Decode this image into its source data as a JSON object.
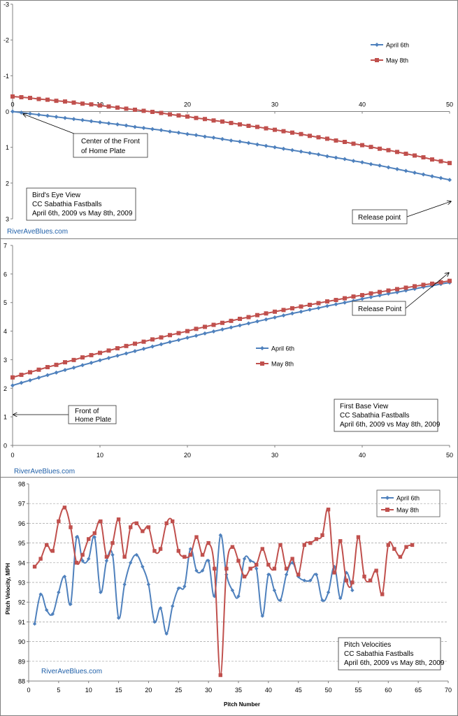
{
  "colors": {
    "april": "#4F81BD",
    "may": "#C0504D",
    "axis": "#808080",
    "grid": "#A0A0A0",
    "panel_border": "#7F7F7F",
    "watermark": "#1F5FA8"
  },
  "watermark": "RiverAveBlues.com",
  "chart_data": [
    {
      "type": "line",
      "id": "birds-eye",
      "xlim": [
        0,
        50
      ],
      "ylim": [
        -3,
        3
      ],
      "y_inverted": true,
      "x_ticks": [
        "0",
        "10",
        "20",
        "30",
        "40",
        "50"
      ],
      "y_ticks": [
        "-3",
        "-2",
        "-1",
        "0",
        "1",
        "2",
        "3"
      ],
      "grid": false,
      "legend_position": "top-right",
      "series": [
        {
          "name": "April 6th",
          "color_key": "april",
          "marker": "diamond",
          "x": [
            0,
            1,
            2,
            3,
            4,
            5,
            6,
            7,
            8,
            9,
            10,
            11,
            12,
            13,
            14,
            15,
            16,
            17,
            18,
            19,
            20,
            21,
            22,
            23,
            24,
            25,
            26,
            27,
            28,
            29,
            30,
            31,
            32,
            33,
            34,
            35,
            36,
            37,
            38,
            39,
            40,
            41,
            42,
            43,
            44,
            45,
            46,
            47,
            48,
            49,
            50
          ],
          "values": [
            0.0,
            0.03,
            0.06,
            0.09,
            0.12,
            0.15,
            0.18,
            0.21,
            0.24,
            0.27,
            0.3,
            0.33,
            0.36,
            0.39,
            0.43,
            0.46,
            0.49,
            0.52,
            0.56,
            0.59,
            0.63,
            0.66,
            0.7,
            0.73,
            0.77,
            0.81,
            0.84,
            0.88,
            0.92,
            0.96,
            1.0,
            1.04,
            1.08,
            1.12,
            1.16,
            1.2,
            1.25,
            1.29,
            1.33,
            1.38,
            1.42,
            1.47,
            1.51,
            1.56,
            1.61,
            1.66,
            1.71,
            1.76,
            1.81,
            1.86,
            1.91
          ]
        },
        {
          "name": "May 8th",
          "color_key": "may",
          "marker": "square",
          "x": [
            0,
            1,
            2,
            3,
            4,
            5,
            6,
            7,
            8,
            9,
            10,
            11,
            12,
            13,
            14,
            15,
            16,
            17,
            18,
            19,
            20,
            21,
            22,
            23,
            24,
            25,
            26,
            27,
            28,
            29,
            30,
            31,
            32,
            33,
            34,
            35,
            36,
            37,
            38,
            39,
            40,
            41,
            42,
            43,
            44,
            45,
            46,
            47,
            48,
            49,
            50
          ],
          "values": [
            -0.42,
            -0.4,
            -0.38,
            -0.35,
            -0.33,
            -0.3,
            -0.28,
            -0.25,
            -0.22,
            -0.2,
            -0.17,
            -0.14,
            -0.11,
            -0.08,
            -0.05,
            -0.02,
            0.01,
            0.04,
            0.08,
            0.11,
            0.14,
            0.18,
            0.21,
            0.25,
            0.28,
            0.32,
            0.36,
            0.4,
            0.43,
            0.47,
            0.51,
            0.55,
            0.59,
            0.63,
            0.68,
            0.72,
            0.76,
            0.81,
            0.85,
            0.9,
            0.94,
            0.99,
            1.04,
            1.08,
            1.13,
            1.18,
            1.23,
            1.28,
            1.34,
            1.39,
            1.44
          ]
        }
      ],
      "annotations": [
        {
          "id": "center-plate",
          "lines": [
            "Center of the Front",
            "of Home Plate"
          ],
          "target_x": 0,
          "target_y": 0
        },
        {
          "id": "release-point",
          "lines": [
            "Release point"
          ],
          "target_x": 50,
          "target_y": 1.91
        },
        {
          "id": "title-box",
          "lines": [
            "Bird's Eye View",
            "CC Sabathia Fastballs",
            "April 6th, 2009  vs May 8th, 2009"
          ]
        }
      ]
    },
    {
      "type": "line",
      "id": "first-base",
      "xlim": [
        0,
        50
      ],
      "ylim": [
        0,
        7
      ],
      "y_inverted": false,
      "x_ticks": [
        "0",
        "10",
        "20",
        "30",
        "40",
        "50"
      ],
      "y_ticks": [
        "0",
        "1",
        "2",
        "3",
        "4",
        "5",
        "6",
        "7"
      ],
      "grid": false,
      "legend_position": "center",
      "series": [
        {
          "name": "April 6th",
          "color_key": "april",
          "marker": "diamond",
          "x": [
            0,
            1,
            2,
            3,
            4,
            5,
            6,
            7,
            8,
            9,
            10,
            11,
            12,
            13,
            14,
            15,
            16,
            17,
            18,
            19,
            20,
            21,
            22,
            23,
            24,
            25,
            26,
            27,
            28,
            29,
            30,
            31,
            32,
            33,
            34,
            35,
            36,
            37,
            38,
            39,
            40,
            41,
            42,
            43,
            44,
            45,
            46,
            47,
            48,
            49,
            50
          ],
          "values": [
            2.1,
            2.19,
            2.28,
            2.37,
            2.46,
            2.55,
            2.64,
            2.72,
            2.81,
            2.89,
            2.98,
            3.06,
            3.14,
            3.22,
            3.3,
            3.38,
            3.46,
            3.54,
            3.62,
            3.69,
            3.77,
            3.84,
            3.92,
            3.99,
            4.06,
            4.13,
            4.2,
            4.27,
            4.34,
            4.41,
            4.48,
            4.55,
            4.62,
            4.68,
            4.75,
            4.81,
            4.88,
            4.94,
            5.0,
            5.06,
            5.13,
            5.19,
            5.25,
            5.31,
            5.36,
            5.42,
            5.48,
            5.54,
            5.59,
            5.65,
            5.7
          ]
        },
        {
          "name": "May 8th",
          "color_key": "may",
          "marker": "square",
          "x": [
            0,
            1,
            2,
            3,
            4,
            5,
            6,
            7,
            8,
            9,
            10,
            11,
            12,
            13,
            14,
            15,
            16,
            17,
            18,
            19,
            20,
            21,
            22,
            23,
            24,
            25,
            26,
            27,
            28,
            29,
            30,
            31,
            32,
            33,
            34,
            35,
            36,
            37,
            38,
            39,
            40,
            41,
            42,
            43,
            44,
            45,
            46,
            47,
            48,
            49,
            50
          ],
          "values": [
            2.38,
            2.47,
            2.56,
            2.65,
            2.74,
            2.82,
            2.91,
            2.99,
            3.08,
            3.16,
            3.24,
            3.32,
            3.4,
            3.48,
            3.56,
            3.63,
            3.71,
            3.78,
            3.86,
            3.93,
            4.0,
            4.08,
            4.15,
            4.22,
            4.29,
            4.36,
            4.43,
            4.49,
            4.56,
            4.62,
            4.68,
            4.74,
            4.8,
            4.86,
            4.92,
            4.98,
            5.04,
            5.09,
            5.15,
            5.21,
            5.26,
            5.32,
            5.37,
            5.42,
            5.47,
            5.52,
            5.57,
            5.62,
            5.66,
            5.71,
            5.76
          ]
        }
      ],
      "annotations": [
        {
          "id": "release-point",
          "lines": [
            "Release Point"
          ],
          "target_x": 50,
          "target_y": 5.7
        },
        {
          "id": "front-plate",
          "lines": [
            "Front of",
            "Home Plate"
          ],
          "target_x": 0,
          "target_y": 1.1
        },
        {
          "id": "title-box",
          "lines": [
            "First Base View",
            "CC Sabathia Fastballs",
            "April 6th, 2009  vs May 8th, 2009"
          ]
        }
      ]
    },
    {
      "type": "line",
      "id": "pitch-velocities",
      "xlabel": "Pitch Number",
      "ylabel": "Pitch Velocity, MPH",
      "xlim": [
        0,
        70
      ],
      "ylim": [
        88,
        98
      ],
      "y_inverted": false,
      "x_ticks": [
        "0",
        "5",
        "10",
        "15",
        "20",
        "25",
        "30",
        "35",
        "40",
        "45",
        "50",
        "55",
        "60",
        "65",
        "70"
      ],
      "y_ticks": [
        "88",
        "89",
        "90",
        "91",
        "92",
        "93",
        "94",
        "95",
        "96",
        "97",
        "98"
      ],
      "grid": true,
      "legend_position": "top-right",
      "series": [
        {
          "name": "April 6th",
          "color_key": "april",
          "marker": "diamond",
          "x": [
            1,
            2,
            3,
            4,
            5,
            6,
            7,
            8,
            9,
            10,
            11,
            12,
            13,
            14,
            15,
            16,
            17,
            18,
            19,
            20,
            21,
            22,
            23,
            24,
            25,
            26,
            27,
            28,
            29,
            30,
            31,
            32,
            33,
            34,
            35,
            36,
            37,
            38,
            39,
            40,
            41,
            42,
            43,
            44,
            45,
            46,
            47,
            48,
            49,
            50,
            51,
            52,
            53,
            54
          ],
          "values": [
            90.9,
            92.4,
            91.6,
            91.4,
            92.5,
            93.3,
            91.9,
            95.3,
            94.1,
            94.2,
            95.3,
            92.5,
            94.1,
            94.4,
            91.2,
            92.9,
            94.0,
            94.4,
            93.8,
            92.9,
            91.0,
            91.7,
            90.4,
            91.8,
            92.7,
            92.8,
            94.7,
            93.6,
            93.6,
            94.1,
            92.3,
            95.4,
            93.4,
            92.6,
            92.3,
            94.2,
            94.1,
            93.7,
            91.3,
            93.4,
            92.6,
            92.1,
            93.4,
            94.0,
            93.3,
            93.1,
            93.1,
            93.4,
            92.1,
            92.5,
            93.8,
            92.2,
            93.5,
            92.6
          ]
        },
        {
          "name": "May 8th",
          "color_key": "may",
          "marker": "square",
          "x": [
            1,
            2,
            3,
            4,
            5,
            6,
            7,
            8,
            9,
            10,
            11,
            12,
            13,
            14,
            15,
            16,
            17,
            18,
            19,
            20,
            21,
            22,
            23,
            24,
            25,
            26,
            27,
            28,
            29,
            30,
            31,
            32,
            33,
            34,
            35,
            36,
            37,
            38,
            39,
            40,
            41,
            42,
            43,
            44,
            45,
            46,
            47,
            48,
            49,
            50,
            51,
            52,
            53,
            54,
            55,
            56,
            57,
            58,
            59,
            60,
            61,
            62,
            63,
            64
          ],
          "values": [
            93.8,
            94.2,
            94.9,
            94.6,
            96.1,
            96.8,
            95.8,
            94.0,
            94.4,
            95.2,
            95.5,
            96.1,
            94.3,
            95.0,
            96.2,
            94.3,
            95.8,
            96.0,
            95.6,
            95.8,
            94.6,
            94.7,
            96.0,
            96.1,
            94.6,
            94.3,
            94.4,
            95.3,
            94.4,
            95.0,
            93.7,
            88.3,
            93.7,
            94.8,
            94.1,
            93.3,
            93.7,
            93.9,
            94.7,
            93.9,
            93.7,
            94.9,
            93.7,
            94.2,
            93.4,
            94.9,
            95.0,
            95.2,
            95.4,
            96.7,
            93.5,
            95.1,
            93.1,
            93.0,
            95.3,
            93.3,
            93.1,
            93.6,
            92.4,
            94.9,
            94.7,
            94.3,
            94.8,
            94.9
          ]
        }
      ],
      "annotations": [
        {
          "id": "title-box",
          "lines": [
            "Pitch Velocities",
            "CC Sabathia Fastballs",
            "April 6th, 2009  vs May 8th, 2009"
          ]
        }
      ]
    }
  ]
}
